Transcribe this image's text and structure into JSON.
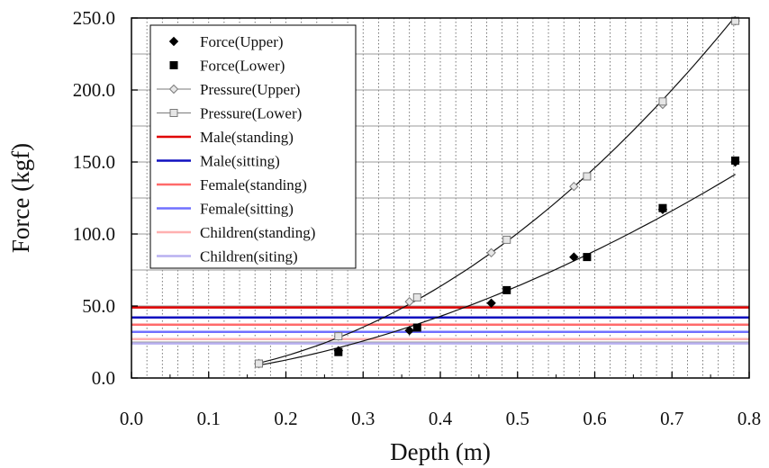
{
  "chart_data": {
    "type": "line",
    "xlabel": "Depth (m)",
    "ylabel": "Force (kgf)",
    "xlim": [
      0.0,
      0.8
    ],
    "ylim": [
      0.0,
      250.0
    ],
    "x_ticks": [
      "0.0",
      "0.1",
      "0.2",
      "0.3",
      "0.4",
      "0.5",
      "0.6",
      "0.7",
      "0.8"
    ],
    "y_ticks": [
      "0.0",
      "50.0",
      "100.0",
      "150.0",
      "200.0",
      "250.0"
    ],
    "grid": "on",
    "legend_position": "top-left",
    "series": [
      {
        "name": "Force(Upper)",
        "marker": "diamond-filled",
        "color": "#000000",
        "points": [
          [
            0.165,
            10
          ],
          [
            0.268,
            19
          ],
          [
            0.36,
            33
          ],
          [
            0.466,
            52
          ],
          [
            0.573,
            84
          ],
          [
            0.688,
            117
          ],
          [
            0.782,
            150
          ]
        ]
      },
      {
        "name": "Force(Lower)",
        "marker": "square-filled",
        "color": "#000000",
        "points": [
          [
            0.165,
            10
          ],
          [
            0.268,
            18
          ],
          [
            0.37,
            35
          ],
          [
            0.486,
            61
          ],
          [
            0.59,
            84
          ],
          [
            0.688,
            118
          ],
          [
            0.782,
            151
          ]
        ]
      },
      {
        "name": "Pressure(Upper)",
        "marker": "diamond-open",
        "color": "#7a7a7a",
        "points": [
          [
            0.165,
            10
          ],
          [
            0.268,
            29
          ],
          [
            0.36,
            53
          ],
          [
            0.466,
            87
          ],
          [
            0.573,
            133
          ],
          [
            0.688,
            190
          ],
          [
            0.782,
            248
          ]
        ]
      },
      {
        "name": "Pressure(Lower)",
        "marker": "square-open",
        "color": "#7a7a7a",
        "points": [
          [
            0.165,
            10
          ],
          [
            0.268,
            29
          ],
          [
            0.37,
            56
          ],
          [
            0.486,
            96
          ],
          [
            0.59,
            140
          ],
          [
            0.688,
            192
          ],
          [
            0.782,
            248
          ]
        ]
      }
    ],
    "reference_lines": [
      {
        "name": "Male(standing)",
        "y": 49,
        "color": "#e00000"
      },
      {
        "name": "Male(sitting)",
        "y": 42,
        "color": "#1010c0"
      },
      {
        "name": "Female(standing)",
        "y": 37,
        "color": "#ff6a6a"
      },
      {
        "name": "Female(sitting)",
        "y": 32,
        "color": "#7070ff"
      },
      {
        "name": "Children(standing)",
        "y": 27,
        "color": "#ffb0b0"
      },
      {
        "name": "Children(siting)",
        "y": 24,
        "color": "#b8b0f0"
      }
    ]
  }
}
